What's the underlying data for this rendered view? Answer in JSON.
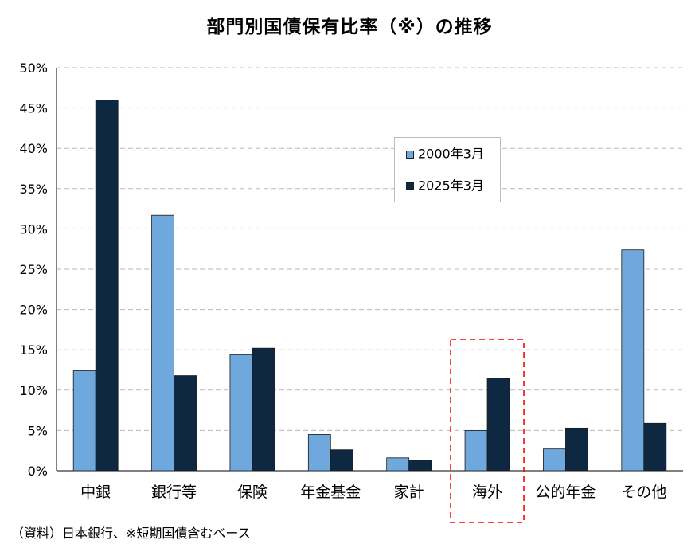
{
  "chart_data": {
    "type": "bar",
    "title": "部門別国債保有比率（※）の推移",
    "categories": [
      "中銀",
      "銀行等",
      "保険",
      "年金基金",
      "家計",
      "海外",
      "公的年金",
      "その他"
    ],
    "series": [
      {
        "name": "2000年3月",
        "color": "#6FA8DC",
        "values": [
          12.4,
          31.7,
          14.4,
          4.5,
          1.6,
          5.0,
          2.7,
          27.4
        ]
      },
      {
        "name": "2025年3月",
        "color": "#0F2842",
        "values": [
          46.0,
          11.8,
          15.2,
          2.6,
          1.3,
          11.5,
          5.3,
          5.9
        ]
      }
    ],
    "ylim": [
      0,
      50
    ],
    "yticks": [
      "0%",
      "5%",
      "10%",
      "15%",
      "20%",
      "25%",
      "30%",
      "35%",
      "40%",
      "45%",
      "50%"
    ],
    "grid": true,
    "legend": "upper-center",
    "highlight": {
      "category": "海外",
      "style": "red-dashed-box",
      "color": "#FF0000"
    },
    "source": "（資料）日本銀行、※短期国債含むベース"
  }
}
